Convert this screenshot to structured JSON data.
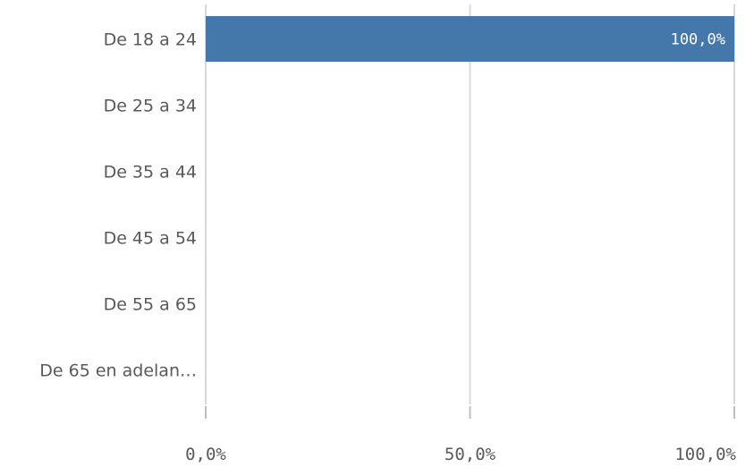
{
  "chart_data": {
    "type": "bar",
    "orientation": "horizontal",
    "categories": [
      "De 18 a 24",
      "De 25 a 34",
      "De 35 a 44",
      "De 45 a 54",
      "De 55 a 65",
      "De 65 en adelan…"
    ],
    "values": [
      100,
      0,
      0,
      0,
      0,
      0
    ],
    "value_labels": [
      "100,0%",
      "",
      "",
      "",
      "",
      ""
    ],
    "x_ticks": [
      "0,0%",
      "50,0%",
      "100,0%"
    ],
    "x_tick_values": [
      0,
      50,
      100
    ],
    "xlim": [
      0,
      100
    ],
    "title": "",
    "xlabel": "",
    "ylabel": "",
    "grid": true,
    "bar_color": "#4477aa",
    "grid_color": "#d9d9d9"
  }
}
